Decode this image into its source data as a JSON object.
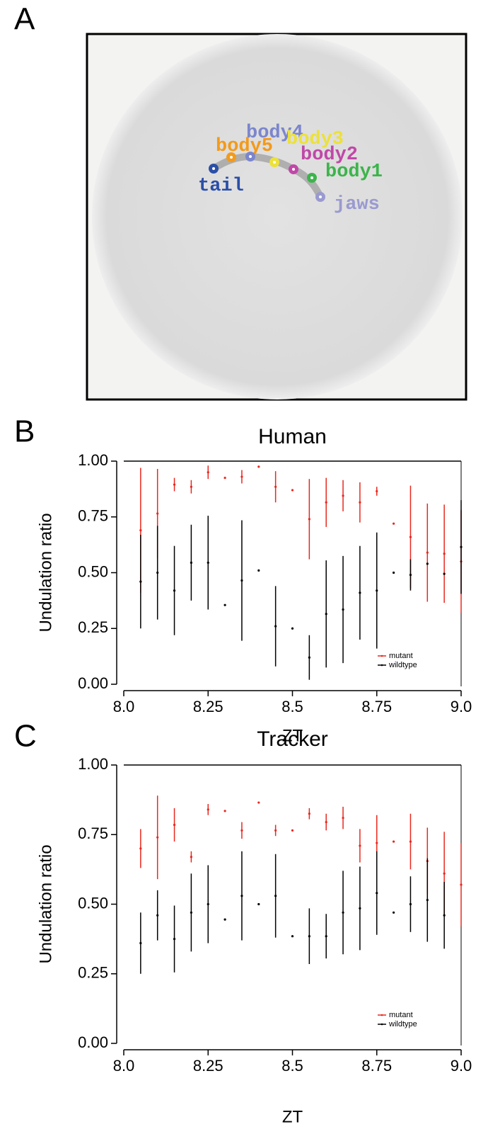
{
  "panel_labels": [
    "A",
    "B",
    "C"
  ],
  "image": {
    "keypoints": [
      {
        "label": "tail",
        "color": "#2b4fa8"
      },
      {
        "label": "body5",
        "color": "#f39a1b"
      },
      {
        "label": "body4",
        "color": "#7b86cc"
      },
      {
        "label": "body3",
        "color": "#ece13a"
      },
      {
        "label": "body2",
        "color": "#c048a8"
      },
      {
        "label": "body1",
        "color": "#3cb44b"
      },
      {
        "label": "jaws",
        "color": "#9a9ad0"
      }
    ]
  },
  "chart_data": [
    {
      "type": "scatter",
      "title": "Human",
      "xlabel": "ZT",
      "ylabel": "Undulation ratio",
      "x": [
        8.05,
        8.1,
        8.15,
        8.2,
        8.25,
        8.3,
        8.35,
        8.4,
        8.45,
        8.5,
        8.55,
        8.6,
        8.65,
        8.7,
        8.75,
        8.8,
        8.85,
        8.9,
        8.95,
        9.0
      ],
      "series": [
        {
          "name": "mutant",
          "color": "#e8281e",
          "values": [
            0.69,
            0.765,
            0.895,
            0.885,
            0.95,
            0.925,
            0.93,
            0.975,
            0.885,
            0.87,
            0.74,
            0.815,
            0.845,
            0.815,
            0.865,
            0.72,
            0.66,
            0.59,
            0.585,
            0.55
          ],
          "errors": [
            0.28,
            0.2,
            0.03,
            0.03,
            0.03,
            null,
            0.03,
            null,
            0.07,
            null,
            0.18,
            0.11,
            0.07,
            0.09,
            0.02,
            null,
            0.23,
            0.22,
            0.22,
            0.23
          ]
        },
        {
          "name": "wildtype",
          "color": "#000000",
          "values": [
            0.46,
            0.5,
            0.42,
            0.545,
            0.545,
            0.355,
            0.465,
            0.51,
            0.26,
            0.25,
            0.12,
            0.315,
            0.335,
            0.41,
            0.42,
            0.5,
            0.49,
            0.54,
            0.495,
            0.615
          ],
          "errors": [
            0.21,
            0.21,
            0.2,
            0.17,
            0.21,
            null,
            0.27,
            null,
            0.18,
            null,
            0.1,
            0.24,
            0.24,
            0.21,
            0.26,
            null,
            0.07,
            null,
            null,
            0.21
          ]
        }
      ],
      "xlim": [
        8.0,
        9.0
      ],
      "xticks": [
        {
          "value": 8.0,
          "label": "8.0"
        },
        8.25,
        8.5,
        8.75,
        {
          "value": 9.0,
          "label": "9.0"
        }
      ],
      "ylim": [
        0,
        1
      ],
      "yticks": [
        {
          "value": 0,
          "label": "0.00"
        },
        {
          "value": 0.25,
          "label": "0.25"
        },
        {
          "value": 0.5,
          "label": "0.50"
        },
        {
          "value": 0.75,
          "label": "0.75"
        },
        {
          "value": 1,
          "label": "1.00"
        }
      ],
      "legend": "bottom-right"
    },
    {
      "type": "scatter",
      "title": "Tracker",
      "xlabel": "ZT",
      "ylabel": "Undulation ratio",
      "x": [
        8.05,
        8.1,
        8.15,
        8.2,
        8.25,
        8.3,
        8.35,
        8.4,
        8.45,
        8.5,
        8.55,
        8.6,
        8.65,
        8.7,
        8.75,
        8.8,
        8.85,
        8.9,
        8.95,
        9.0
      ],
      "series": [
        {
          "name": "mutant",
          "color": "#e8281e",
          "values": [
            0.7,
            0.74,
            0.785,
            0.67,
            0.84,
            0.835,
            0.765,
            0.865,
            0.765,
            0.765,
            0.825,
            0.795,
            0.81,
            0.71,
            0.72,
            0.725,
            0.725,
            0.655,
            0.61,
            0.57
          ],
          "errors": [
            0.07,
            0.15,
            0.06,
            0.02,
            0.02,
            null,
            0.03,
            null,
            0.02,
            null,
            0.02,
            0.03,
            0.04,
            0.06,
            0.1,
            null,
            0.1,
            0.12,
            0.15,
            0.15
          ]
        },
        {
          "name": "wildtype",
          "color": "#000000",
          "values": [
            0.36,
            0.46,
            0.375,
            0.47,
            0.5,
            0.445,
            0.53,
            0.5,
            0.53,
            0.385,
            0.385,
            0.385,
            0.47,
            0.485,
            0.54,
            0.47,
            0.5,
            0.515,
            0.46,
            null
          ],
          "errors": [
            0.11,
            0.09,
            0.12,
            0.14,
            0.14,
            null,
            0.16,
            null,
            0.15,
            null,
            0.1,
            0.08,
            0.15,
            0.15,
            0.15,
            null,
            0.1,
            0.15,
            0.12,
            null
          ]
        }
      ],
      "xlim": [
        8.0,
        9.0
      ],
      "xticks": [
        {
          "value": 8.0,
          "label": "8.0"
        },
        8.25,
        8.5,
        8.75,
        {
          "value": 9.0,
          "label": "9.0"
        }
      ],
      "ylim": [
        0,
        1
      ],
      "yticks": [
        {
          "value": 0,
          "label": "0.00"
        },
        {
          "value": 0.25,
          "label": "0.25"
        },
        {
          "value": 0.5,
          "label": "0.50"
        },
        {
          "value": 0.75,
          "label": "0.75"
        },
        {
          "value": 1,
          "label": "1.00"
        }
      ],
      "legend": "bottom-right"
    }
  ]
}
